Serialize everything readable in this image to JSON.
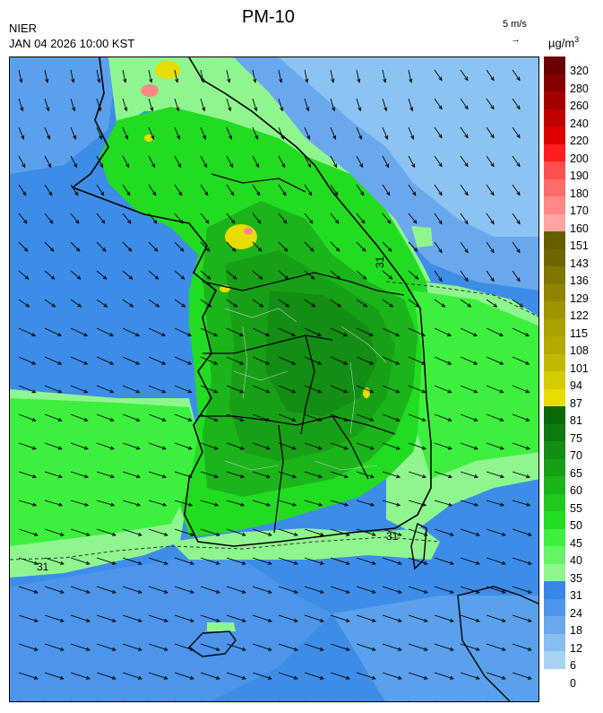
{
  "header": {
    "title": "PM-10",
    "agency": "NIER",
    "datetime": "JAN 04 2026 10:00 KST"
  },
  "wind_reference": {
    "label": "5 m/s",
    "arrow": "→"
  },
  "unit": {
    "base": "µg/m",
    "exponent": "3"
  },
  "legend": {
    "bins": [
      {
        "label": "320",
        "color": "#6b0000"
      },
      {
        "label": "280",
        "color": "#860000"
      },
      {
        "label": "260",
        "color": "#a30000"
      },
      {
        "label": "240",
        "color": "#c00000"
      },
      {
        "label": "220",
        "color": "#dd0000"
      },
      {
        "label": "200",
        "color": "#ff1e1e"
      },
      {
        "label": "190",
        "color": "#ff4e4e"
      },
      {
        "label": "180",
        "color": "#ff6a6a"
      },
      {
        "label": "170",
        "color": "#ff8787"
      },
      {
        "label": "160",
        "color": "#ffa3a3"
      },
      {
        "label": "151",
        "color": "#665e00"
      },
      {
        "label": "143",
        "color": "#6f6600"
      },
      {
        "label": "136",
        "color": "#7f7700"
      },
      {
        "label": "129",
        "color": "#8f8500"
      },
      {
        "label": "122",
        "color": "#9e9400"
      },
      {
        "label": "115",
        "color": "#aaa000"
      },
      {
        "label": "108",
        "color": "#b5aa00"
      },
      {
        "label": "101",
        "color": "#c3b800"
      },
      {
        "label": "94",
        "color": "#d4cb00"
      },
      {
        "label": "87",
        "color": "#e9dc00"
      },
      {
        "label": "81",
        "color": "#0a6a0a"
      },
      {
        "label": "75",
        "color": "#0f7a0f"
      },
      {
        "label": "70",
        "color": "#138d13"
      },
      {
        "label": "65",
        "color": "#17a017"
      },
      {
        "label": "60",
        "color": "#1bb41b"
      },
      {
        "label": "55",
        "color": "#20c820"
      },
      {
        "label": "50",
        "color": "#22dc22"
      },
      {
        "label": "45",
        "color": "#3ef03e"
      },
      {
        "label": "40",
        "color": "#66f466"
      },
      {
        "label": "35",
        "color": "#8ff68f"
      },
      {
        "label": "31",
        "color": "#3a86e8"
      },
      {
        "label": "24",
        "color": "#4c95ea"
      },
      {
        "label": "18",
        "color": "#6aa8ee"
      },
      {
        "label": "12",
        "color": "#88bdf0"
      },
      {
        "label": "6",
        "color": "#a6d3f4"
      },
      {
        "label": "0",
        "color": ""
      }
    ]
  },
  "map": {
    "contour_labels": [
      "31",
      "31",
      "31"
    ],
    "colors": {
      "sea_low": "#3d8de8",
      "sea_lower": "#5aa0ec",
      "sea_light": "#8cc3f2",
      "band": "#8ff68f",
      "land_mid": "#22dc22",
      "land_high": "#1bb41b",
      "land_peak": "#138d13",
      "hotspot_yellow": "#e9dc00",
      "hotspot_pink": "#ff8787",
      "coast": "#000000",
      "district": "#c8c8c8"
    }
  }
}
